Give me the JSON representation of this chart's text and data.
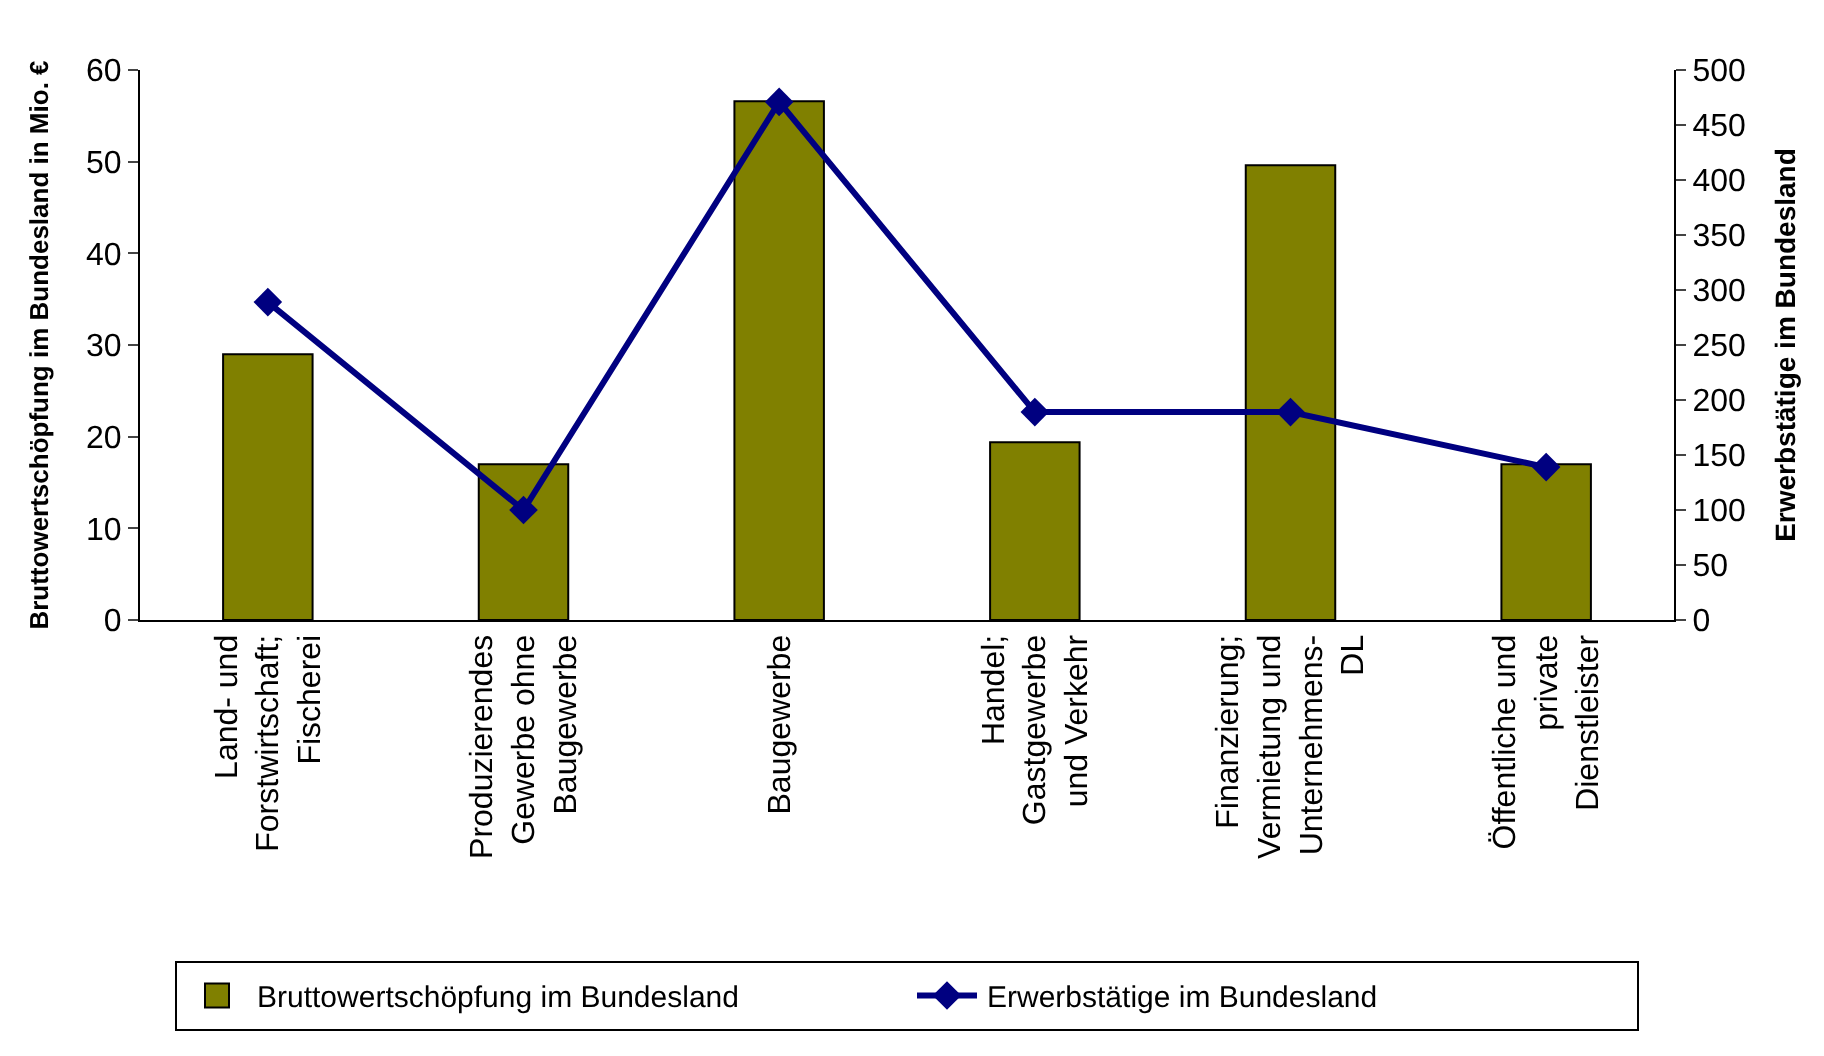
{
  "chart_data": {
    "type": "bar",
    "categories": [
      "Land- und\nForstwirtschaft;\nFischerei",
      "Produzierendes\nGewerbe ohne\nBaugewerbe",
      "Baugewerbe",
      "Handel;\nGastgewerbe\nund Verkehr",
      "Finanzierung;\nVermietung und\nUnternehmens-\nDL",
      "Öffentliche und\nprivate\nDienstleister"
    ],
    "series": [
      {
        "name": "Bruttowertschöpfung im Bundesland",
        "color": "#808000",
        "values": [
          29,
          17,
          56.6,
          19.4,
          49.6,
          17
        ]
      },
      {
        "name": "Erwerbstätige im Bundesland",
        "type": "line",
        "axis": "y2",
        "color": "#000080",
        "values": [
          289,
          100,
          471,
          189,
          189,
          139
        ]
      }
    ],
    "ylabel": "Bruttowertschöpfung im Bundesland in Mio. €",
    "y2label": "Erwerbstätige im Bundesland",
    "ylim": [
      0,
      60
    ],
    "yticks": [
      0,
      10,
      20,
      30,
      40,
      50,
      60
    ],
    "y2lim": [
      0,
      500
    ],
    "y2ticks": [
      0,
      50,
      100,
      150,
      200,
      250,
      300,
      350,
      400,
      450,
      500
    ],
    "marker": "diamond",
    "line_style": "solid",
    "legend": "bottom"
  }
}
